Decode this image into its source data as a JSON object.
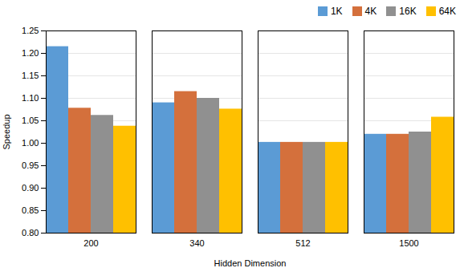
{
  "chart_data": {
    "type": "bar",
    "categories": [
      "200",
      "340",
      "512",
      "1500"
    ],
    "series": [
      {
        "name": "1K",
        "color": "#5b9bd5",
        "values": [
          1.215,
          1.09,
          1.002,
          1.02
        ]
      },
      {
        "name": "4K",
        "color": "#d4703c",
        "values": [
          1.078,
          1.115,
          1.002,
          1.02
        ]
      },
      {
        "name": "16K",
        "color": "#909090",
        "values": [
          1.062,
          1.1,
          1.002,
          1.025
        ]
      },
      {
        "name": "64K",
        "color": "#ffc000",
        "values": [
          1.038,
          1.076,
          1.002,
          1.058
        ]
      }
    ],
    "xlabel": "Hidden Dimension",
    "ylabel": "Speedup",
    "ylim": [
      0.8,
      1.25
    ],
    "yticks": [
      {
        "value": 0.8,
        "label": "0.80"
      },
      0.85,
      {
        "value": 0.9,
        "label": "0.90"
      },
      0.95,
      {
        "value": 1.0,
        "label": "1.00"
      },
      1.05,
      {
        "value": 1.1,
        "label": "1.10"
      },
      1.15,
      {
        "value": 1.2,
        "label": "1.20"
      },
      1.25
    ],
    "grid": true,
    "legend": "upper right"
  }
}
